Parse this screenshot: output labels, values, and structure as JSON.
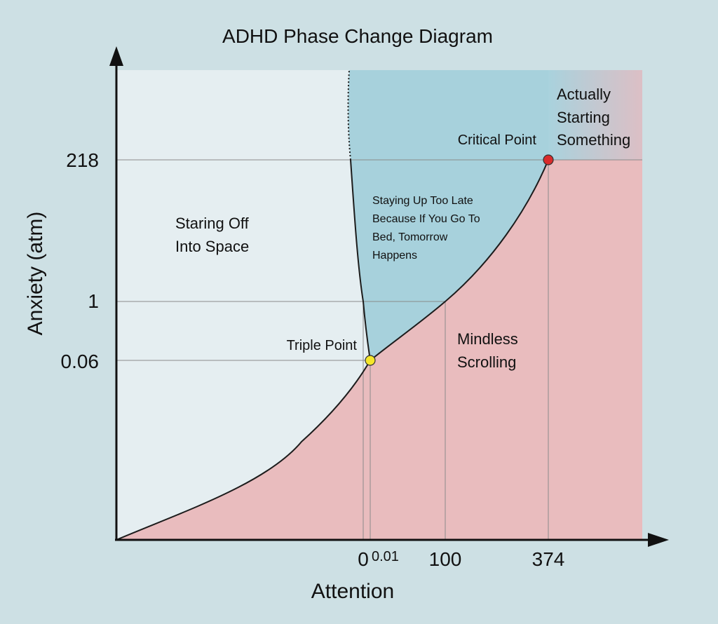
{
  "chart_data": {
    "type": "phase-diagram",
    "title": "ADHD Phase Change Diagram",
    "xlabel": "Attention",
    "ylabel": "Anxiety (atm)",
    "x_ticks": [
      "0",
      "0.01",
      "100",
      "374"
    ],
    "y_ticks": [
      "218",
      "1",
      "0.06"
    ],
    "points": [
      {
        "name": "triple-point",
        "label": "Triple Point",
        "x": 0.01,
        "y": 0.06,
        "color": "#f5e62a"
      },
      {
        "name": "critical-point",
        "label": "Critical Point",
        "x": 374,
        "y": 218,
        "color": "#d92b2b"
      }
    ],
    "regions": [
      {
        "name": "solid",
        "lines": [
          "Staring Off",
          "Into Space"
        ],
        "color": "#e5eef1"
      },
      {
        "name": "liquid",
        "lines": [
          "Staying Up Too Late",
          "Because If You Go To",
          "Bed, Tomorrow",
          "Happens"
        ],
        "color": "#a7d1dc"
      },
      {
        "name": "gas",
        "lines": [
          "Mindless",
          "Scrolling"
        ],
        "color": "#e9bcbe"
      },
      {
        "name": "supercritical",
        "lines": [
          "Actually",
          "Starting",
          "Something"
        ],
        "color": "#c2cdd2"
      }
    ],
    "colors": {
      "background": "#cde0e4",
      "axis": "#111111",
      "curve": "#1c1c1c",
      "gridline": "#8a8a8a"
    }
  }
}
